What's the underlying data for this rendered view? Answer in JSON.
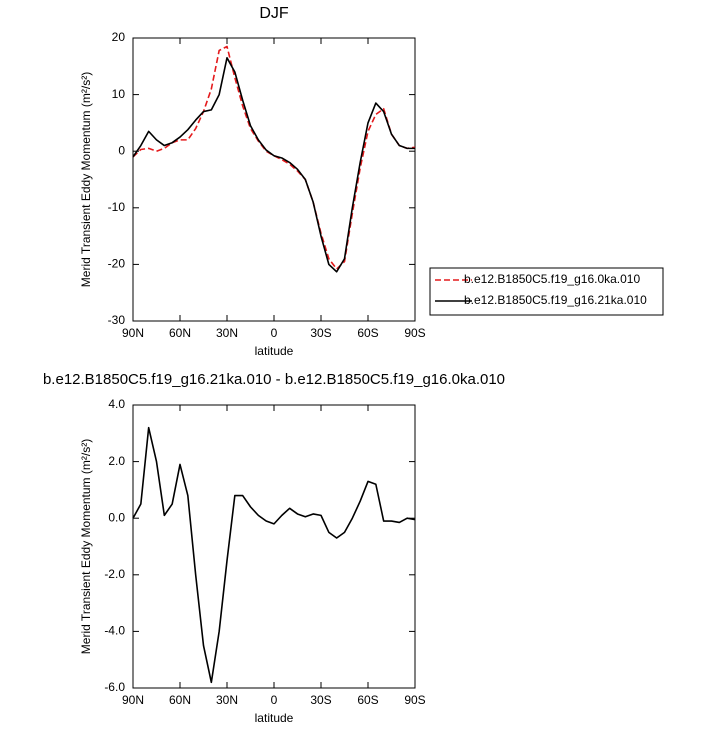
{
  "chart_data": [
    {
      "type": "line",
      "title": "DJF",
      "xlabel": "latitude",
      "ylabel": "Merid Transient Eddy Momentum (m²/s²)",
      "x": [
        90,
        85,
        80,
        75,
        70,
        65,
        60,
        55,
        50,
        45,
        40,
        35,
        30,
        25,
        20,
        15,
        10,
        5,
        0,
        -5,
        -10,
        -15,
        -20,
        -25,
        -30,
        -35,
        -40,
        -45,
        -50,
        -55,
        -60,
        -65,
        -70,
        -75,
        -80,
        -85,
        -90
      ],
      "xlim": [
        90,
        -90
      ],
      "xticks": [
        {
          "value": 90,
          "label": "90N"
        },
        {
          "value": 60,
          "label": "60N"
        },
        {
          "value": 30,
          "label": "30N"
        },
        0,
        {
          "value": -30,
          "label": "30S"
        },
        {
          "value": -60,
          "label": "60S"
        },
        {
          "value": -90,
          "label": "90S"
        }
      ],
      "ylim": [
        -30,
        20
      ],
      "yticks": [
        20,
        10,
        0,
        -10,
        -20,
        -30
      ],
      "legend": "right",
      "series": [
        {
          "name": "b.e12.B1850C5.f19_g16.0ka.010",
          "color": "#e41a1c",
          "dash": true,
          "values": [
            -1,
            0.3,
            0.5,
            0,
            0.5,
            1.5,
            2,
            2,
            4,
            7,
            11,
            17.8,
            18.5,
            13,
            8,
            4,
            1.8,
            0,
            -0.8,
            -1.5,
            -2.3,
            -3.5,
            -5,
            -9,
            -14.5,
            -19,
            -20.8,
            -19.5,
            -11,
            -3,
            3.5,
            6.5,
            7.5,
            3,
            1,
            0.5,
            0.7
          ]
        },
        {
          "name": "b.e12.B1850C5.f19_g16.21ka.010",
          "color": "#000000",
          "dash": false,
          "values": [
            -1,
            1,
            3.5,
            2,
            1,
            1.5,
            2.5,
            3.8,
            5.5,
            7,
            7.3,
            10,
            16.5,
            14,
            9,
            4.5,
            2,
            0.2,
            -0.8,
            -1.2,
            -2,
            -3.2,
            -5,
            -9,
            -15,
            -20,
            -21.3,
            -19,
            -10,
            -2,
            5,
            8.5,
            7,
            3,
            1,
            0.5,
            0.5
          ]
        }
      ]
    },
    {
      "type": "line",
      "title": "b.e12.B1850C5.f19_g16.21ka.010 - b.e12.B1850C5.f19_g16.0ka.010",
      "xlabel": "latitude",
      "ylabel": "Merid Transient Eddy Momentum (m²/s²)",
      "x": [
        90,
        85,
        80,
        75,
        70,
        65,
        60,
        55,
        50,
        45,
        40,
        35,
        30,
        25,
        20,
        15,
        10,
        5,
        0,
        -5,
        -10,
        -15,
        -20,
        -25,
        -30,
        -35,
        -40,
        -45,
        -50,
        -55,
        -60,
        -65,
        -70,
        -75,
        -80,
        -85,
        -90
      ],
      "xlim": [
        90,
        -90
      ],
      "xticks": [
        {
          "value": 90,
          "label": "90N"
        },
        {
          "value": 60,
          "label": "60N"
        },
        {
          "value": 30,
          "label": "30N"
        },
        0,
        {
          "value": -30,
          "label": "30S"
        },
        {
          "value": -60,
          "label": "60S"
        },
        {
          "value": -90,
          "label": "90S"
        }
      ],
      "ylim": [
        -6,
        4
      ],
      "yticks": [
        {
          "value": 4,
          "label": "4.0"
        },
        {
          "value": 2,
          "label": "2.0"
        },
        {
          "value": 0,
          "label": "0.0"
        },
        {
          "value": -2,
          "label": "-2.0"
        },
        {
          "value": -4,
          "label": "-4.0"
        },
        {
          "value": -6,
          "label": "-6.0"
        }
      ],
      "color": "#000000",
      "values": [
        0,
        0.5,
        3.2,
        2,
        0.1,
        0.5,
        1.9,
        0.8,
        -2,
        -4.5,
        -5.8,
        -4,
        -1.5,
        0.8,
        0.8,
        0.4,
        0.1,
        -0.1,
        -0.2,
        0.1,
        0.35,
        0.15,
        0.05,
        0.15,
        0.1,
        -0.5,
        -0.7,
        -0.5,
        0,
        0.6,
        1.3,
        1.2,
        -0.1,
        -0.1,
        -0.15,
        0,
        -0.05
      ]
    }
  ]
}
